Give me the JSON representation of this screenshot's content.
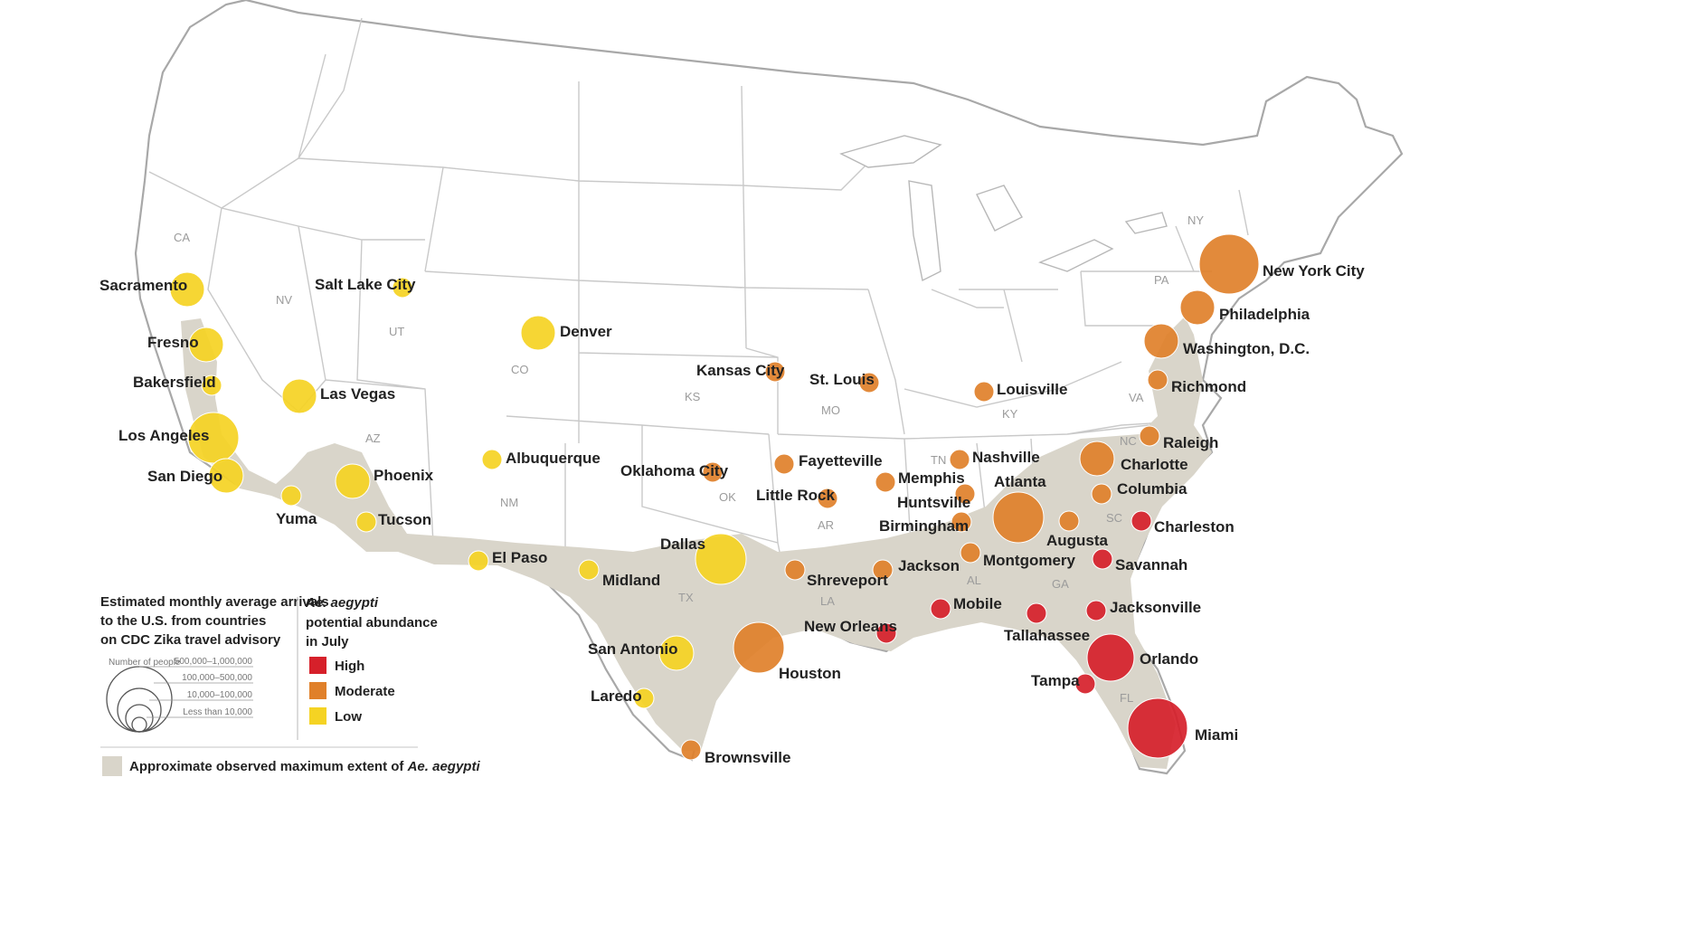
{
  "colors": {
    "high": "#d6202a",
    "moderate": "#e0802a",
    "low": "#f5d323",
    "extent": "#d9d5ca"
  },
  "legend": {
    "arrivals_title": [
      "Estimated monthly average arrivals",
      "to the U.S. from countries",
      "on CDC Zika travel advisory"
    ],
    "size_header": "Number of people",
    "size_classes": [
      "500,000–1,000,000",
      "100,000–500,000",
      "10,000–100,000",
      "Less than 10,000"
    ],
    "abundance_title_italic": "Ae. aegypti",
    "abundance_title_rest": [
      "potential abundance",
      "in July"
    ],
    "levels": [
      {
        "key": "high",
        "label": "High"
      },
      {
        "key": "moderate",
        "label": "Moderate"
      },
      {
        "key": "low",
        "label": "Low"
      }
    ],
    "extent_label_prefix": "Approximate observed maximum extent of ",
    "extent_label_italic": "Ae. aegypti"
  },
  "state_labels": [
    "CA",
    "NV",
    "UT",
    "AZ",
    "CO",
    "NM",
    "TX",
    "KS",
    "OK",
    "MO",
    "AR",
    "LA",
    "TN",
    "KY",
    "AL",
    "GA",
    "SC",
    "NC",
    "VA",
    "PA",
    "NY",
    "FL"
  ],
  "cities": [
    {
      "name": "Sacramento",
      "level": "low",
      "size": 2
    },
    {
      "name": "Fresno",
      "level": "low",
      "size": 2
    },
    {
      "name": "Bakersfield",
      "level": "low",
      "size": 1
    },
    {
      "name": "Los Angeles",
      "level": "low",
      "size": 3
    },
    {
      "name": "San Diego",
      "level": "low",
      "size": 2
    },
    {
      "name": "Las Vegas",
      "level": "low",
      "size": 2
    },
    {
      "name": "Salt Lake City",
      "level": "low",
      "size": 1
    },
    {
      "name": "Yuma",
      "level": "low",
      "size": 1
    },
    {
      "name": "Phoenix",
      "level": "low",
      "size": 2
    },
    {
      "name": "Tucson",
      "level": "low",
      "size": 1
    },
    {
      "name": "Denver",
      "level": "low",
      "size": 2
    },
    {
      "name": "Albuquerque",
      "level": "low",
      "size": 1
    },
    {
      "name": "El Paso",
      "level": "low",
      "size": 1
    },
    {
      "name": "Midland",
      "level": "low",
      "size": 1
    },
    {
      "name": "Dallas",
      "level": "low",
      "size": 3
    },
    {
      "name": "San Antonio",
      "level": "low",
      "size": 2
    },
    {
      "name": "Laredo",
      "level": "low",
      "size": 1
    },
    {
      "name": "Kansas City",
      "level": "moderate",
      "size": 1
    },
    {
      "name": "St. Louis",
      "level": "moderate",
      "size": 1
    },
    {
      "name": "Louisville",
      "level": "moderate",
      "size": 1
    },
    {
      "name": "Oklahoma City",
      "level": "moderate",
      "size": 1
    },
    {
      "name": "Fayetteville",
      "level": "moderate",
      "size": 1
    },
    {
      "name": "Little Rock",
      "level": "moderate",
      "size": 1
    },
    {
      "name": "Memphis",
      "level": "moderate",
      "size": 1
    },
    {
      "name": "Nashville",
      "level": "moderate",
      "size": 1
    },
    {
      "name": "Huntsville",
      "level": "moderate",
      "size": 1
    },
    {
      "name": "Birmingham",
      "level": "moderate",
      "size": 1
    },
    {
      "name": "Atlanta",
      "level": "moderate",
      "size": 3
    },
    {
      "name": "Augusta",
      "level": "moderate",
      "size": 1
    },
    {
      "name": "Montgomery",
      "level": "moderate",
      "size": 1
    },
    {
      "name": "Shreveport",
      "level": "moderate",
      "size": 1
    },
    {
      "name": "Jackson",
      "level": "moderate",
      "size": 1
    },
    {
      "name": "Houston",
      "level": "moderate",
      "size": 3
    },
    {
      "name": "Brownsville",
      "level": "moderate",
      "size": 1
    },
    {
      "name": "Charlotte",
      "level": "moderate",
      "size": 2
    },
    {
      "name": "Columbia",
      "level": "moderate",
      "size": 1
    },
    {
      "name": "Raleigh",
      "level": "moderate",
      "size": 1
    },
    {
      "name": "Richmond",
      "level": "moderate",
      "size": 1
    },
    {
      "name": "Washington, D.C.",
      "level": "moderate",
      "size": 2
    },
    {
      "name": "Philadelphia",
      "level": "moderate",
      "size": 2
    },
    {
      "name": "New York City",
      "level": "moderate",
      "size": 4
    },
    {
      "name": "Charleston",
      "level": "high",
      "size": 1
    },
    {
      "name": "Savannah",
      "level": "high",
      "size": 1
    },
    {
      "name": "Jacksonville",
      "level": "high",
      "size": 1
    },
    {
      "name": "Mobile",
      "level": "high",
      "size": 1
    },
    {
      "name": "New Orleans",
      "level": "high",
      "size": 1
    },
    {
      "name": "Tallahassee",
      "level": "high",
      "size": 1
    },
    {
      "name": "Orlando",
      "level": "high",
      "size": 3
    },
    {
      "name": "Tampa",
      "level": "high",
      "size": 1
    },
    {
      "name": "Miami",
      "level": "high",
      "size": 4
    }
  ]
}
